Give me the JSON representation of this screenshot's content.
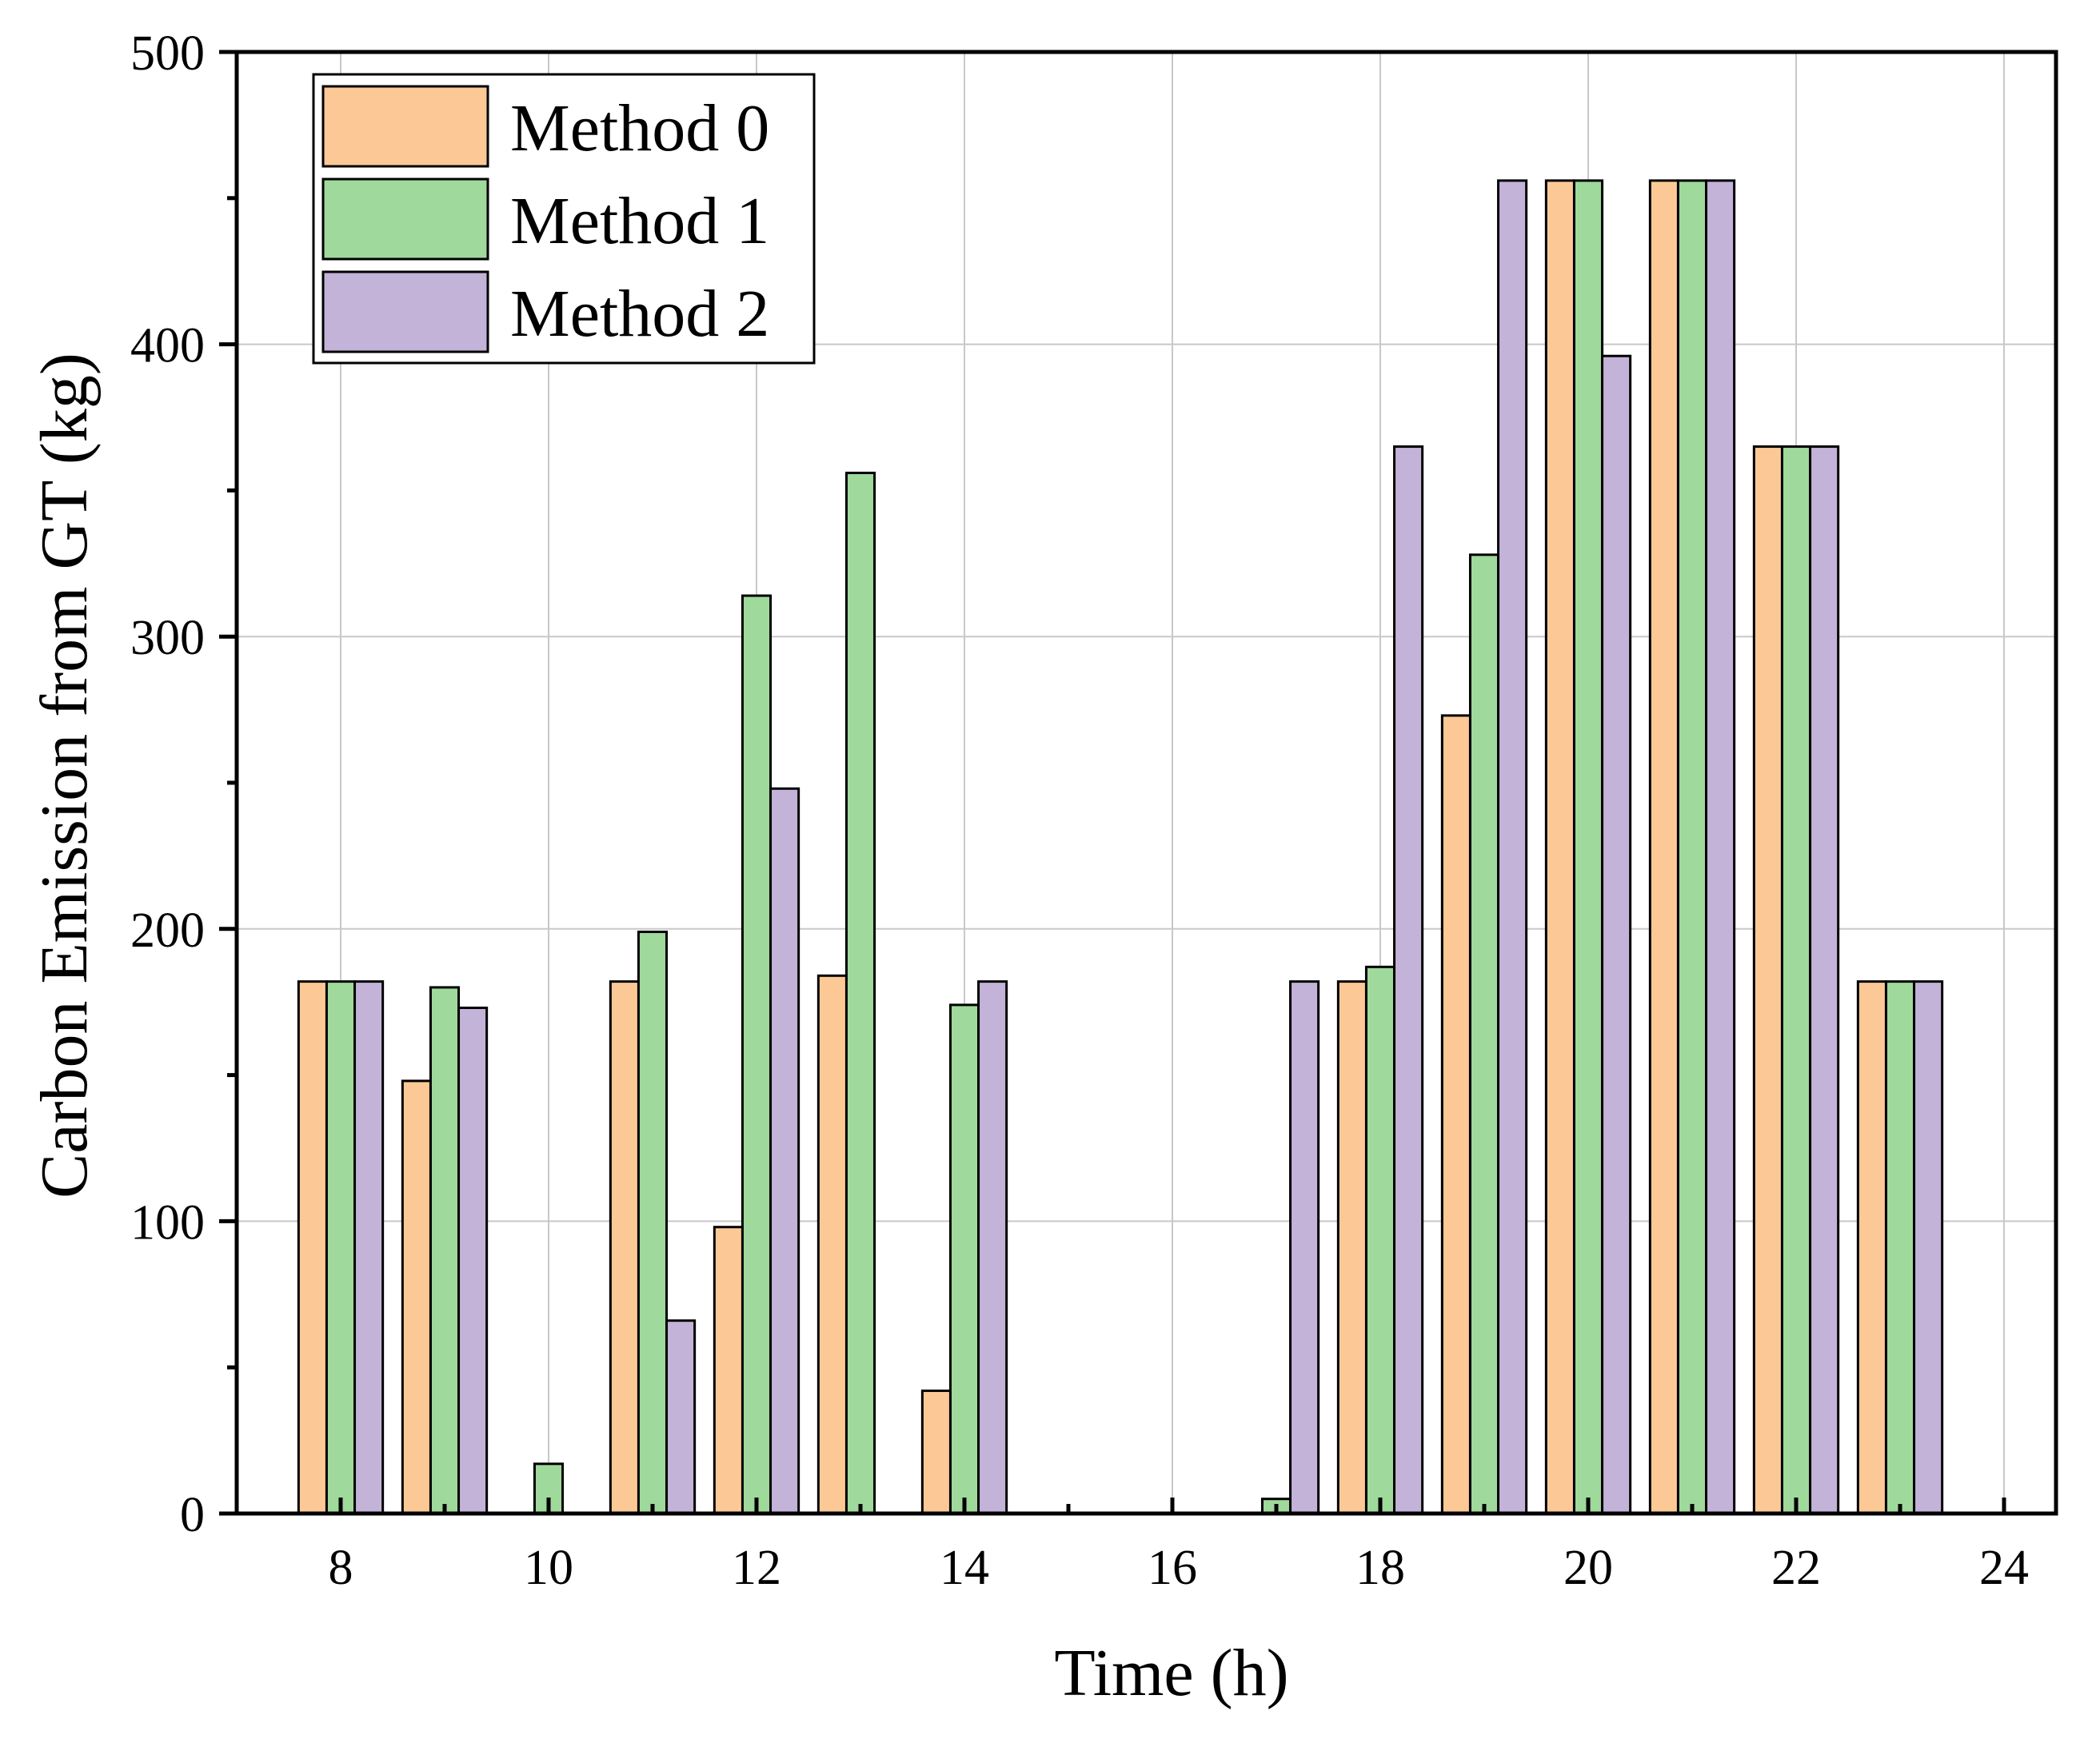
{
  "chart_data": {
    "type": "bar",
    "title": "",
    "xlabel": "Time (h)",
    "ylabel": "Carbon Emission from GT (kg)",
    "xlim": [
      7,
      24.5
    ],
    "ylim": [
      0,
      500
    ],
    "grid": true,
    "legend_position": "top-left",
    "x_ticks": [
      8,
      10,
      12,
      14,
      16,
      18,
      20,
      22,
      24
    ],
    "y_ticks": [
      0,
      100,
      200,
      300,
      400,
      500
    ],
    "categories": [
      8,
      9,
      10,
      11,
      12,
      13,
      14,
      15,
      16,
      17,
      18,
      19,
      20,
      21,
      22,
      23
    ],
    "series": [
      {
        "name": "Method 0",
        "color": "#FCC996",
        "values": [
          182,
          148,
          0,
          182,
          98,
          184,
          42,
          0,
          0,
          0,
          182,
          273,
          456,
          456,
          365,
          182
        ]
      },
      {
        "name": "Method 1",
        "color": "#9FD99B",
        "values": [
          182,
          180,
          17,
          199,
          314,
          356,
          174,
          0,
          0,
          5,
          187,
          328,
          456,
          456,
          365,
          182
        ]
      },
      {
        "name": "Method 2",
        "color": "#C3B3D8",
        "values": [
          182,
          173,
          0,
          66,
          248,
          0,
          182,
          0,
          0,
          182,
          365,
          456,
          396,
          456,
          365,
          182
        ]
      }
    ]
  }
}
